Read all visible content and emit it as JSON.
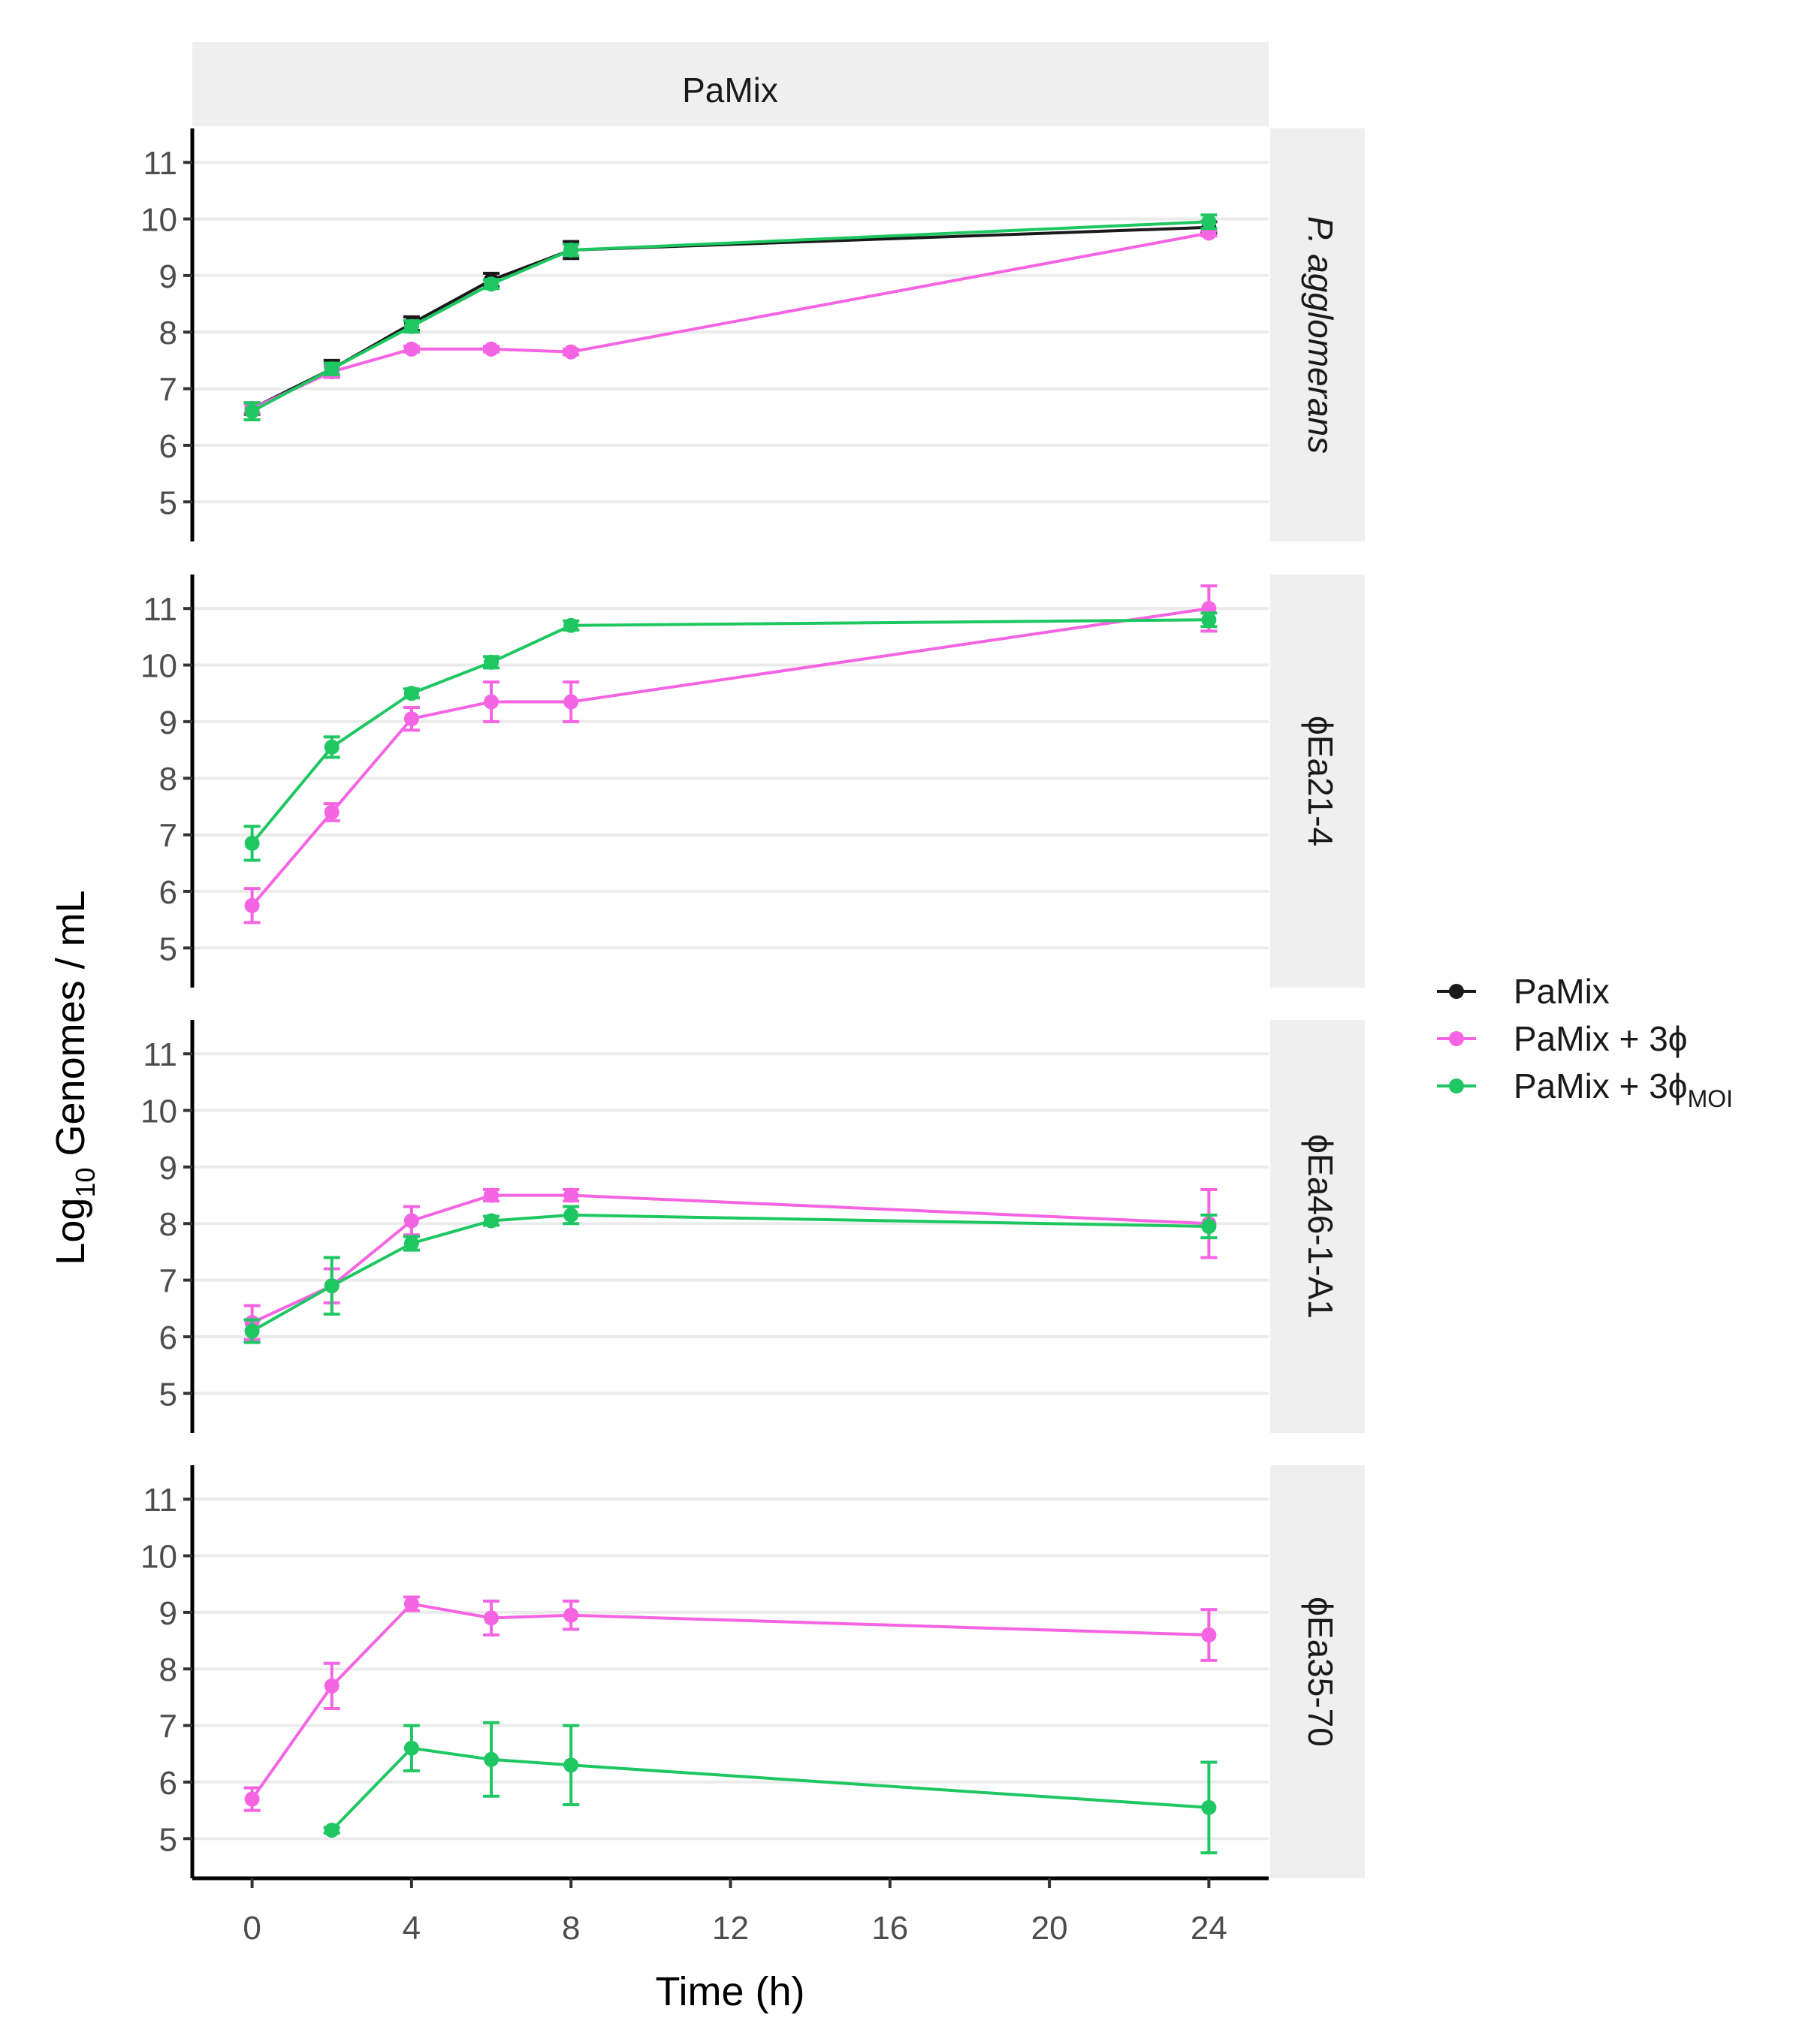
{
  "title": "PaMix",
  "xlabel": "Time (h)",
  "ylabel": {
    "prefix": "Log",
    "subscript": "10",
    "suffix": " Genomes / mL"
  },
  "legend": {
    "position": "right",
    "items": [
      {
        "label": "PaMix",
        "subscript": "",
        "color": "#1a1a1a"
      },
      {
        "label": "PaMix + 3ϕ",
        "subscript": "",
        "color": "#f564e3"
      },
      {
        "label": "PaMix + 3ϕ",
        "subscript": "MOI",
        "color": "#1ec762"
      }
    ]
  },
  "chart_data": {
    "type": "line",
    "title": "PaMix",
    "xlabel": "Time (h)",
    "ylabel": "Log10 Genomes / mL",
    "xlim": [
      -1.5,
      25.5
    ],
    "ylim": [
      4.3,
      11.6
    ],
    "xticks": [
      0,
      4,
      8,
      12,
      16,
      20,
      24
    ],
    "yticks": [
      5,
      6,
      7,
      8,
      9,
      10,
      11
    ],
    "grid": true,
    "series_colors": {
      "PaMix": "#1a1a1a",
      "PaMix + 3ϕ": "#f564e3",
      "PaMix + 3ϕMOI": "#1ec762"
    },
    "panels": [
      {
        "strip": "P. agglomerans",
        "italic": true,
        "series": [
          {
            "name": "PaMix",
            "points": [
              {
                "x": 0,
                "y": 6.65,
                "err": 0.1
              },
              {
                "x": 2,
                "y": 7.35,
                "err": 0.15
              },
              {
                "x": 4,
                "y": 8.15,
                "err": 0.12
              },
              {
                "x": 6,
                "y": 8.92,
                "err": 0.12
              },
              {
                "x": 8,
                "y": 9.45,
                "err": 0.15
              },
              {
                "x": 24,
                "y": 9.85,
                "err": 0.1
              }
            ]
          },
          {
            "name": "PaMix + 3ϕ",
            "points": [
              {
                "x": 0,
                "y": 6.65,
                "err": 0.08
              },
              {
                "x": 2,
                "y": 7.3,
                "err": 0.1
              },
              {
                "x": 4,
                "y": 7.7,
                "err": 0.05
              },
              {
                "x": 6,
                "y": 7.7,
                "err": 0.05
              },
              {
                "x": 8,
                "y": 7.65,
                "err": 0.05
              },
              {
                "x": 24,
                "y": 9.75,
                "err": 0.05
              }
            ]
          },
          {
            "name": "PaMix + 3ϕMOI",
            "points": [
              {
                "x": 0,
                "y": 6.6,
                "err": 0.15
              },
              {
                "x": 2,
                "y": 7.35,
                "err": 0.1
              },
              {
                "x": 4,
                "y": 8.1,
                "err": 0.1
              },
              {
                "x": 6,
                "y": 8.85,
                "err": 0.08
              },
              {
                "x": 8,
                "y": 9.45,
                "err": 0.1
              },
              {
                "x": 24,
                "y": 9.95,
                "err": 0.12
              }
            ]
          }
        ]
      },
      {
        "strip": "ϕEa21-4",
        "italic": false,
        "series": [
          {
            "name": "PaMix + 3ϕ",
            "points": [
              {
                "x": 0,
                "y": 5.75,
                "err": 0.3
              },
              {
                "x": 2,
                "y": 7.4,
                "err": 0.15
              },
              {
                "x": 4,
                "y": 9.05,
                "err": 0.2
              },
              {
                "x": 6,
                "y": 9.35,
                "err": 0.35
              },
              {
                "x": 8,
                "y": 9.35,
                "err": 0.35
              },
              {
                "x": 24,
                "y": 11.0,
                "err": 0.4
              }
            ]
          },
          {
            "name": "PaMix + 3ϕMOI",
            "points": [
              {
                "x": 0,
                "y": 6.85,
                "err": 0.3
              },
              {
                "x": 2,
                "y": 8.55,
                "err": 0.18
              },
              {
                "x": 4,
                "y": 9.5,
                "err": 0.08
              },
              {
                "x": 6,
                "y": 10.05,
                "err": 0.1
              },
              {
                "x": 8,
                "y": 10.7,
                "err": 0.08
              },
              {
                "x": 24,
                "y": 10.8,
                "err": 0.12
              }
            ]
          }
        ]
      },
      {
        "strip": "ϕEa46-1-A1",
        "italic": false,
        "series": [
          {
            "name": "PaMix + 3ϕ",
            "points": [
              {
                "x": 0,
                "y": 6.25,
                "err": 0.3
              },
              {
                "x": 2,
                "y": 6.9,
                "err": 0.3
              },
              {
                "x": 4,
                "y": 8.05,
                "err": 0.25
              },
              {
                "x": 6,
                "y": 8.5,
                "err": 0.1
              },
              {
                "x": 8,
                "y": 8.5,
                "err": 0.1
              },
              {
                "x": 24,
                "y": 8.0,
                "err": 0.6
              }
            ]
          },
          {
            "name": "PaMix + 3ϕMOI",
            "points": [
              {
                "x": 0,
                "y": 6.1,
                "err": 0.2
              },
              {
                "x": 2,
                "y": 6.9,
                "err": 0.5
              },
              {
                "x": 4,
                "y": 7.65,
                "err": 0.12
              },
              {
                "x": 6,
                "y": 8.05,
                "err": 0.08
              },
              {
                "x": 8,
                "y": 8.15,
                "err": 0.15
              },
              {
                "x": 24,
                "y": 7.95,
                "err": 0.2
              }
            ]
          }
        ]
      },
      {
        "strip": "ϕEa35-70",
        "italic": false,
        "series": [
          {
            "name": "PaMix + 3ϕ",
            "points": [
              {
                "x": 0,
                "y": 5.7,
                "err": 0.2
              },
              {
                "x": 2,
                "y": 7.7,
                "err": 0.4
              },
              {
                "x": 4,
                "y": 9.15,
                "err": 0.12
              },
              {
                "x": 6,
                "y": 8.9,
                "err": 0.3
              },
              {
                "x": 8,
                "y": 8.95,
                "err": 0.25
              },
              {
                "x": 24,
                "y": 8.6,
                "err": 0.45
              }
            ]
          },
          {
            "name": "PaMix + 3ϕMOI",
            "points": [
              {
                "x": 2,
                "y": 5.15,
                "err": 0.05
              },
              {
                "x": 4,
                "y": 6.6,
                "err": 0.4
              },
              {
                "x": 6,
                "y": 6.4,
                "err": 0.65
              },
              {
                "x": 8,
                "y": 6.3,
                "err": 0.7
              },
              {
                "x": 24,
                "y": 5.55,
                "err": 0.8
              }
            ]
          }
        ]
      }
    ]
  }
}
